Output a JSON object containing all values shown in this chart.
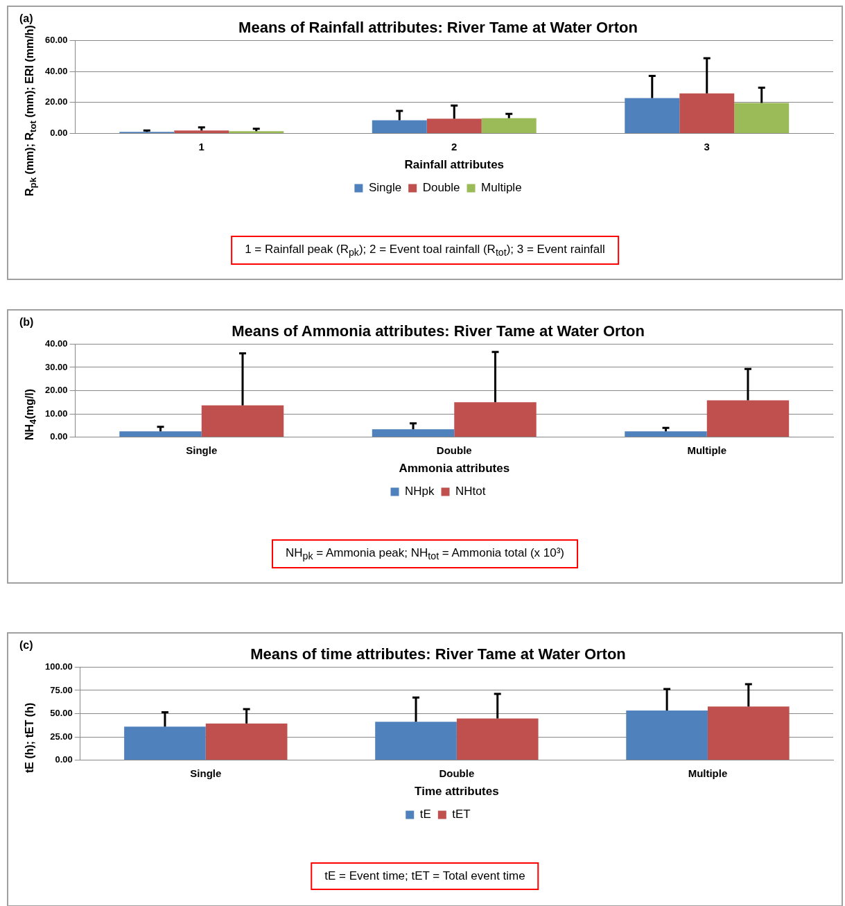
{
  "chart_data": [
    {
      "type": "bar",
      "title": "Means of Rainfall attributes: River Tame at Water Orton",
      "xlabel": "Rainfall attributes",
      "ylabel": "R$_{pk}$ (mm); R$_{tot}$ (mm); ERI (mm/h)",
      "categories": [
        "1",
        "2",
        "3"
      ],
      "series": [
        {
          "name": "Single",
          "color": "#4f81bd",
          "values": [
            1.1,
            8.5,
            22.8
          ],
          "errors": [
            [
              1.1,
              2.0
            ],
            [
              8.5,
              14.6
            ],
            [
              22.8,
              37.2
            ]
          ]
        },
        {
          "name": "Double",
          "color": "#c0504d",
          "values": [
            2.0,
            9.6,
            25.9
          ],
          "errors": [
            [
              2.0,
              4.0
            ],
            [
              9.6,
              18.0
            ],
            [
              25.9,
              48.5
            ]
          ]
        },
        {
          "name": "Multiple",
          "color": "#9bbb59",
          "values": [
            1.5,
            9.9,
            19.7
          ],
          "errors": [
            [
              1.5,
              3.1
            ],
            [
              9.9,
              12.7
            ],
            [
              19.7,
              29.6
            ]
          ]
        }
      ],
      "ylim": [
        0,
        60
      ],
      "yticks": [
        {
          "value": 0,
          "label": "0.00"
        },
        {
          "value": 20,
          "label": "20.00"
        },
        {
          "value": 40,
          "label": "40.00"
        },
        {
          "value": 60,
          "label": "60.00"
        }
      ],
      "grid": "y",
      "legend": "bottom",
      "annotations": [
        "(a)",
        "1 = Rainfall peak (R$_{pk}$); 2 = Event toal rainfall (R$_{tot}$); 3 = Event rainfall"
      ]
    },
    {
      "type": "bar",
      "title": "Means of Ammonia attributes: River Tame at Water Orton",
      "xlabel": "Ammonia attributes",
      "ylabel": "NH$_{4}$(mg/l)",
      "categories": [
        "Single",
        "Double",
        "Multiple"
      ],
      "series": [
        {
          "name": "NHpk",
          "color": "#4f81bd",
          "values": [
            2.5,
            3.4,
            2.5
          ],
          "errors": [
            [
              2.5,
              4.4
            ],
            [
              3.4,
              5.9
            ],
            [
              2.5,
              4.0
            ]
          ]
        },
        {
          "name": "NHtot",
          "color": "#c0504d",
          "values": [
            13.7,
            15.0,
            15.8
          ],
          "errors": [
            [
              13.7,
              36.0
            ],
            [
              15.0,
              36.6
            ],
            [
              15.8,
              29.3
            ]
          ]
        }
      ],
      "ylim": [
        0,
        40
      ],
      "yticks": [
        {
          "value": 0,
          "label": "0.00"
        },
        {
          "value": 10,
          "label": "10.00"
        },
        {
          "value": 20,
          "label": "20.00"
        },
        {
          "value": 30,
          "label": "30.00"
        },
        {
          "value": 40,
          "label": "40.00"
        }
      ],
      "grid": "y",
      "legend": "bottom",
      "annotations": [
        "(b)",
        "NH$_{pk}$ = Ammonia peak; NH$_{tot}$ = Ammonia total (x 10³)"
      ]
    },
    {
      "type": "bar",
      "title": "Means of time attributes: River Tame at Water Orton",
      "xlabel": "Time attributes",
      "ylabel": "tE (h); tET (h)",
      "categories": [
        "Single",
        "Double",
        "Multiple"
      ],
      "series": [
        {
          "name": "tE",
          "color": "#4f81bd",
          "values": [
            36.0,
            41.3,
            53.4
          ],
          "errors": [
            [
              36.0,
              51.4
            ],
            [
              41.3,
              67.3
            ],
            [
              53.4,
              76.4
            ]
          ]
        },
        {
          "name": "tET",
          "color": "#c0504d",
          "values": [
            39.4,
            44.7,
            57.7
          ],
          "errors": [
            [
              39.4,
              54.8
            ],
            [
              44.7,
              71.2
            ],
            [
              57.7,
              81.7
            ]
          ]
        }
      ],
      "ylim": [
        0,
        100
      ],
      "yticks": [
        {
          "value": 0,
          "label": "0.00"
        },
        {
          "value": 25,
          "label": "25.00"
        },
        {
          "value": 50,
          "label": "50.00"
        },
        {
          "value": 75,
          "label": "75.00"
        },
        {
          "value": 100,
          "label": "100.00"
        }
      ],
      "grid": "y",
      "legend": "bottom",
      "annotations": [
        "(c)",
        "tE = Event time; tET = Total event time"
      ]
    }
  ]
}
